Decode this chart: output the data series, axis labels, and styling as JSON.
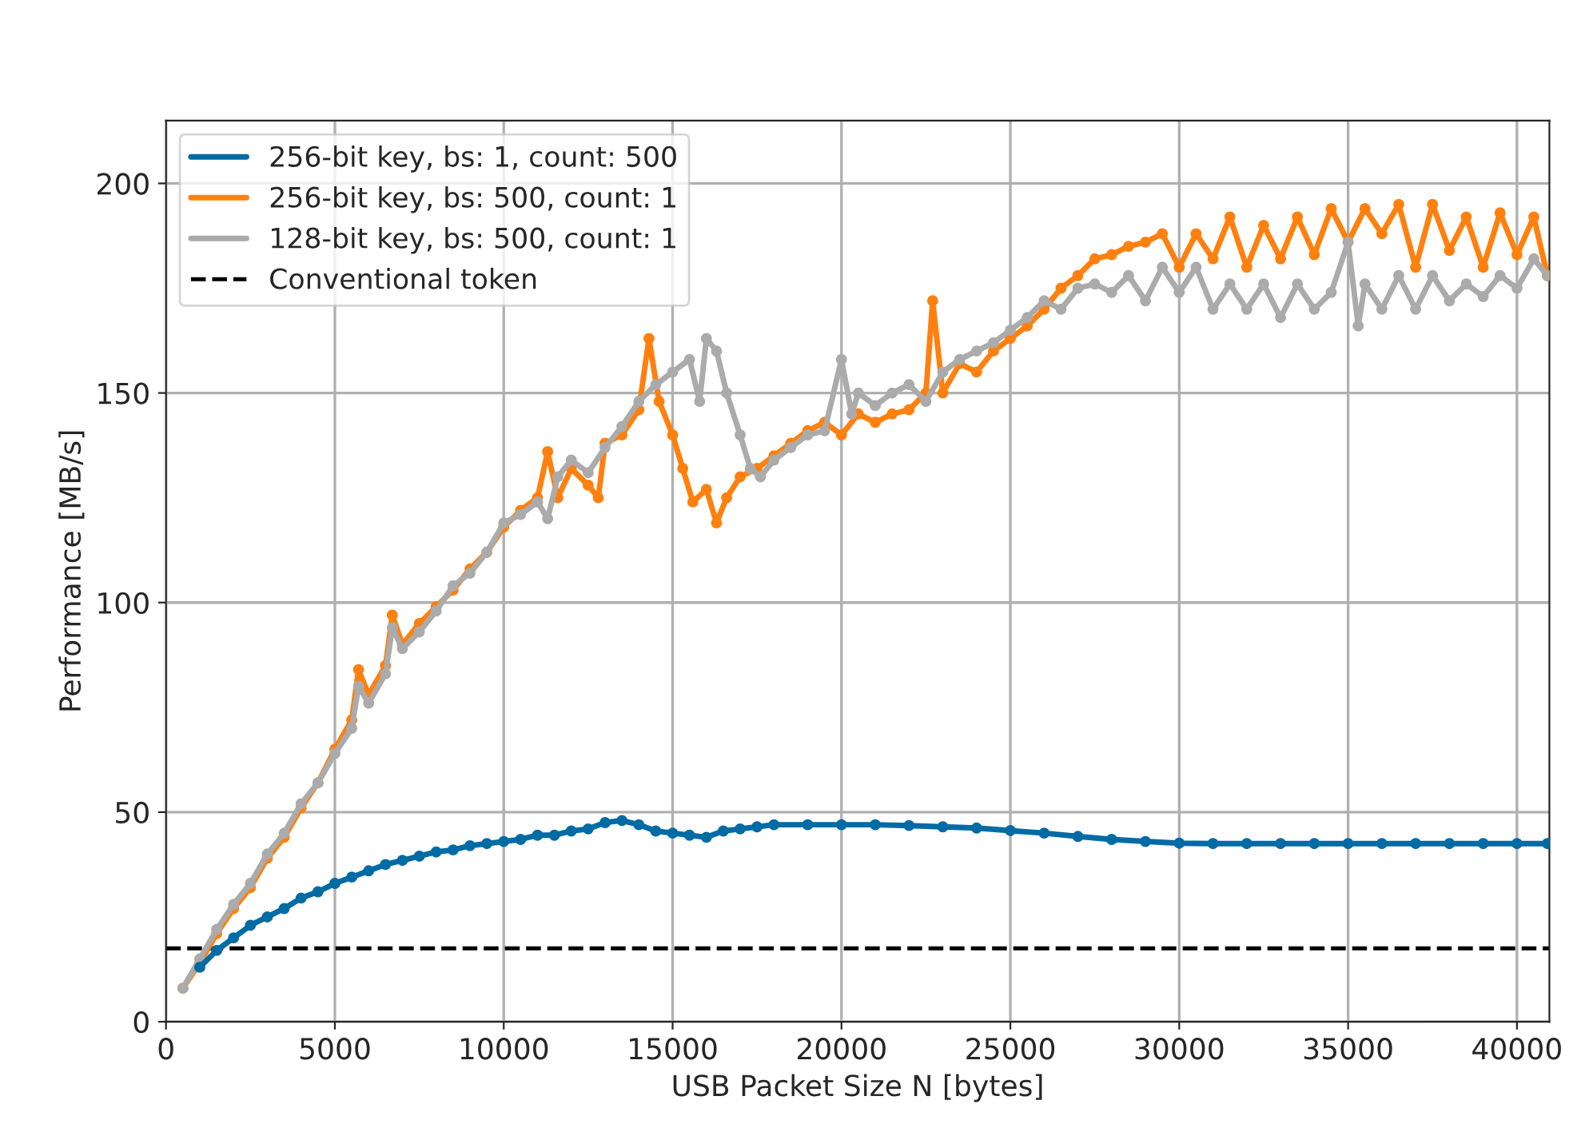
{
  "chart_data": {
    "type": "line",
    "xlabel": "USB Packet Size N [bytes]",
    "ylabel": "Performance [MB/s]",
    "xlim": [
      0,
      40960
    ],
    "ylim": [
      0,
      215
    ],
    "xticks": [
      0,
      5000,
      10000,
      15000,
      20000,
      25000,
      30000,
      35000,
      40000
    ],
    "yticks": [
      0,
      50,
      100,
      150,
      200
    ],
    "grid": true,
    "legend": "top left",
    "marker": "circle",
    "line_style": "solid",
    "series": [
      {
        "name": "256-bit key, bs: 1, count: 500",
        "color": "#006ba4",
        "x": [
          1000,
          1500,
          2000,
          2500,
          3000,
          3500,
          4000,
          4500,
          5000,
          5500,
          6000,
          6500,
          7000,
          7500,
          8000,
          8500,
          9000,
          9500,
          10000,
          10500,
          11000,
          11500,
          12000,
          12500,
          13000,
          13500,
          14000,
          14500,
          15000,
          15500,
          16000,
          16500,
          17000,
          17500,
          18000,
          19000,
          20000,
          21000,
          22000,
          23000,
          24000,
          25000,
          26000,
          27000,
          28000,
          29000,
          30000,
          31000,
          32000,
          33000,
          34000,
          35000,
          36000,
          37000,
          38000,
          39000,
          40000,
          40900
        ],
        "values": [
          13,
          17,
          20,
          23,
          25,
          27,
          29.5,
          31,
          33,
          34.5,
          36,
          37.5,
          38.5,
          39.5,
          40.5,
          41,
          42,
          42.5,
          43,
          43.5,
          44.5,
          44.5,
          45.5,
          46,
          47.5,
          48,
          47,
          45.5,
          45,
          44.5,
          44,
          45.5,
          46,
          46.5,
          47,
          47,
          47,
          47,
          46.8,
          46.5,
          46.2,
          45.6,
          45,
          44.2,
          43.5,
          43,
          42.6,
          42.5,
          42.5,
          42.5,
          42.5,
          42.5,
          42.5,
          42.5,
          42.5,
          42.5,
          42.5,
          42.5
        ]
      },
      {
        "name": "256-bit key, bs: 500, count: 1",
        "color": "#ff800e",
        "x": [
          500,
          1000,
          1500,
          2000,
          2500,
          3000,
          3500,
          4000,
          4500,
          5000,
          5500,
          5700,
          6000,
          6500,
          6700,
          7000,
          7500,
          8000,
          8500,
          9000,
          9500,
          10000,
          10500,
          11000,
          11300,
          11600,
          12000,
          12500,
          12800,
          13000,
          13500,
          14000,
          14300,
          14600,
          15000,
          15300,
          15600,
          16000,
          16300,
          16600,
          17000,
          17500,
          18000,
          18500,
          19000,
          19500,
          20000,
          20500,
          21000,
          21500,
          22000,
          22500,
          22700,
          23000,
          23500,
          24000,
          24500,
          25000,
          25500,
          26000,
          26500,
          27000,
          27500,
          28000,
          28500,
          29000,
          29500,
          30000,
          30500,
          31000,
          31500,
          32000,
          32500,
          33000,
          33500,
          34000,
          34500,
          35000,
          35500,
          36000,
          36500,
          37000,
          37500,
          38000,
          38500,
          39000,
          39500,
          40000,
          40500,
          40900
        ],
        "values": [
          8,
          14,
          21,
          27,
          32,
          39,
          44,
          51,
          57,
          65,
          72,
          84,
          78,
          85,
          97,
          90,
          95,
          99,
          103,
          108,
          112,
          118,
          122,
          125,
          136,
          125,
          132,
          128,
          125,
          138,
          140,
          146,
          163,
          148,
          140,
          132,
          124,
          127,
          119,
          125,
          130,
          132,
          135,
          138,
          141,
          143,
          140,
          145,
          143,
          145,
          146,
          150,
          172,
          150,
          157,
          155,
          160,
          163,
          166,
          170,
          175,
          178,
          182,
          183,
          185,
          186,
          188,
          180,
          188,
          182,
          192,
          180,
          190,
          182,
          192,
          183,
          194,
          186,
          194,
          188,
          195,
          180,
          195,
          184,
          192,
          180,
          193,
          183,
          192,
          178
        ]
      },
      {
        "name": "128-bit key, bs: 500, count: 1",
        "color": "#ababab",
        "x": [
          500,
          1000,
          1500,
          2000,
          2500,
          3000,
          3500,
          4000,
          4500,
          5000,
          5500,
          5700,
          6000,
          6500,
          6700,
          7000,
          7500,
          8000,
          8500,
          9000,
          9500,
          10000,
          10500,
          11000,
          11300,
          11600,
          12000,
          12500,
          13000,
          13500,
          14000,
          14500,
          15000,
          15500,
          15800,
          16000,
          16300,
          16600,
          17000,
          17300,
          17600,
          18000,
          18500,
          19000,
          19500,
          20000,
          20300,
          20500,
          21000,
          21500,
          22000,
          22500,
          23000,
          23500,
          24000,
          24500,
          25000,
          25500,
          26000,
          26500,
          27000,
          27500,
          28000,
          28500,
          29000,
          29500,
          30000,
          30500,
          31000,
          31500,
          32000,
          32500,
          33000,
          33500,
          34000,
          34500,
          35000,
          35300,
          35500,
          36000,
          36500,
          37000,
          37500,
          38000,
          38500,
          39000,
          39500,
          40000,
          40500,
          40900
        ],
        "values": [
          8,
          15,
          22,
          28,
          33,
          40,
          45,
          52,
          57,
          64,
          70,
          80,
          76,
          83,
          94,
          89,
          93,
          98,
          104,
          107,
          112,
          119,
          121,
          124,
          120,
          130,
          134,
          131,
          137,
          142,
          148,
          152,
          155,
          158,
          148,
          163,
          160,
          150,
          140,
          132,
          130,
          134,
          137,
          140,
          141,
          158,
          145,
          150,
          147,
          150,
          152,
          148,
          155,
          158,
          160,
          162,
          165,
          168,
          172,
          170,
          175,
          176,
          174,
          178,
          172,
          180,
          174,
          180,
          170,
          176,
          170,
          176,
          168,
          176,
          170,
          174,
          186,
          166,
          176,
          170,
          178,
          170,
          178,
          172,
          176,
          173,
          178,
          175,
          182,
          178
        ]
      }
    ],
    "ref_lines": [
      {
        "axis": "y",
        "value": 17.5,
        "label": "Conventional token",
        "color": "#000000",
        "line_style": "dashed"
      }
    ]
  }
}
